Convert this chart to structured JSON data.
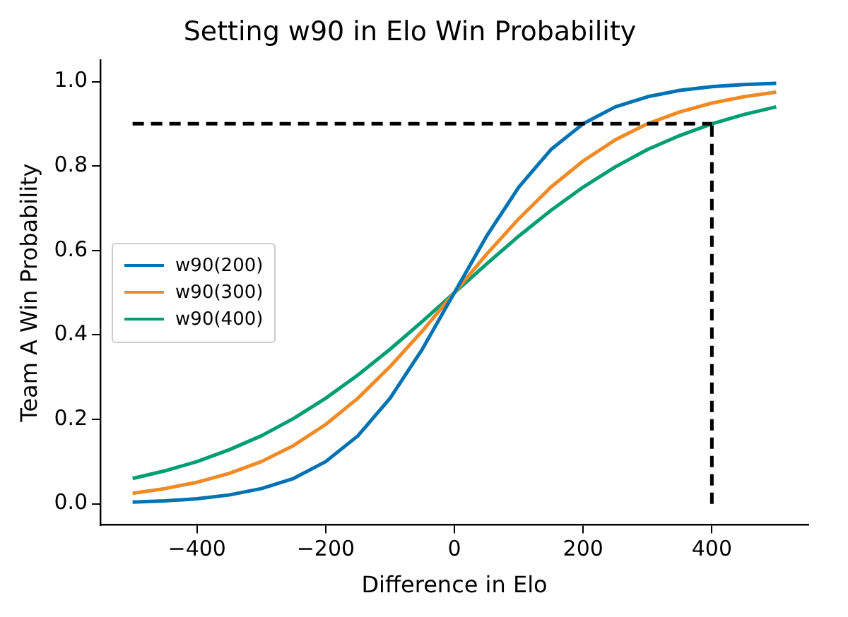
{
  "chart_data": {
    "type": "line",
    "title": "Setting w90 in Elo Win Probability",
    "xlabel": "Difference in Elo",
    "ylabel": "Team A Win Probability",
    "x": [
      -500,
      -450,
      -400,
      -350,
      -300,
      -250,
      -200,
      -150,
      -100,
      -50,
      0,
      50,
      100,
      150,
      200,
      250,
      300,
      350,
      400,
      450,
      500
    ],
    "series": [
      {
        "name": "w90(200)",
        "color": "#0173b2",
        "values": [
          0.004,
          0.007,
          0.012,
          0.021,
          0.036,
          0.06,
          0.1,
          0.161,
          0.25,
          0.366,
          0.5,
          0.634,
          0.75,
          0.839,
          0.9,
          0.94,
          0.964,
          0.979,
          0.988,
          0.993,
          0.996
        ]
      },
      {
        "name": "w90(300)",
        "color": "#f08a24",
        "values": [
          0.025,
          0.036,
          0.051,
          0.072,
          0.1,
          0.138,
          0.188,
          0.25,
          0.325,
          0.409,
          0.5,
          0.591,
          0.675,
          0.75,
          0.812,
          0.862,
          0.9,
          0.928,
          0.949,
          0.964,
          0.975
        ]
      },
      {
        "name": "w90(400)",
        "color": "#029e73",
        "values": [
          0.06,
          0.078,
          0.1,
          0.128,
          0.161,
          0.202,
          0.25,
          0.305,
          0.366,
          0.432,
          0.5,
          0.568,
          0.634,
          0.695,
          0.75,
          0.798,
          0.839,
          0.872,
          0.9,
          0.922,
          0.94
        ]
      }
    ],
    "xlim": [
      -550,
      550
    ],
    "xticks": [
      -400,
      -200,
      0,
      200,
      400
    ],
    "ylim": [
      -0.05,
      1.05
    ],
    "yticks": [
      {
        "value": 0,
        "label": "0.0"
      },
      0.2,
      0.4,
      0.6,
      0.8,
      {
        "value": 1,
        "label": "1.0"
      }
    ],
    "ref_lines": [
      {
        "axis": "y",
        "value": 0.9,
        "color": "#000000",
        "line_style": "dashed"
      },
      {
        "axis": "x",
        "value": 400,
        "color": "#000000",
        "line_style": "dashed"
      }
    ],
    "grid": false,
    "legend": "center left",
    "marker": "none",
    "line_style": "solid"
  }
}
